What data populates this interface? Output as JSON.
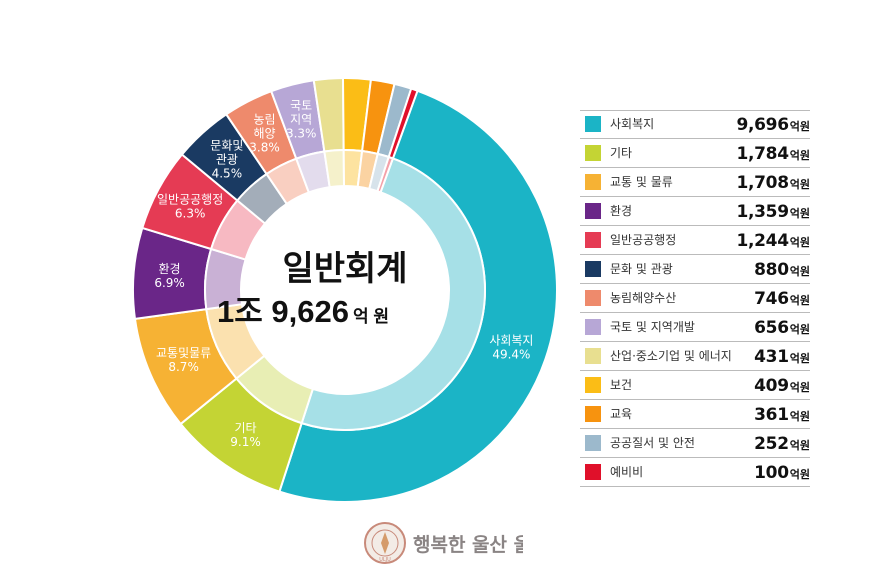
{
  "chart_data": {
    "type": "pie",
    "center_title": "일반회계",
    "center_value": "1조 9,626",
    "center_unit": "억 원",
    "slices": [
      {
        "label": "사회복지",
        "short_label": [
          "사회복지"
        ],
        "pct_label": "49.4%",
        "pct": 49.4,
        "value": "9,696",
        "color": "#1bb4c6",
        "inner_color": "#a6e0e7"
      },
      {
        "label": "기타",
        "short_label": [
          "기타"
        ],
        "pct_label": "9.1%",
        "pct": 9.1,
        "value": "1,784",
        "color": "#c4d434",
        "inner_color": "#e8eeb4"
      },
      {
        "label": "교통 및 물류",
        "short_label": [
          "교통및물류"
        ],
        "pct_label": "8.7%",
        "pct": 8.7,
        "value": "1,708",
        "color": "#f6b234",
        "inner_color": "#fbe1af"
      },
      {
        "label": "환경",
        "short_label": [
          "환경"
        ],
        "pct_label": "6.9%",
        "pct": 6.9,
        "value": "1,359",
        "color": "#6a2688",
        "inner_color": "#c9b1d5"
      },
      {
        "label": "일반공공행정",
        "short_label": [
          "일반공공행정"
        ],
        "pct_label": "6.3%",
        "pct": 6.3,
        "value": "1,244",
        "color": "#e53b54",
        "inner_color": "#f7b9c2"
      },
      {
        "label": "문화 및 관광",
        "short_label": [
          "문화및",
          "관광"
        ],
        "pct_label": "4.5%",
        "pct": 4.5,
        "value": "880",
        "color": "#1a3a62",
        "inner_color": "#a3adb9"
      },
      {
        "label": "농림해양수산",
        "short_label": [
          "농림",
          "해양"
        ],
        "pct_label": "3.8%",
        "pct": 3.8,
        "value": "746",
        "color": "#ee8a6c",
        "inner_color": "#f9cfc1"
      },
      {
        "label": "국토 및 지역개발",
        "short_label": [
          "국토",
          "지역"
        ],
        "pct_label": "3.3%",
        "pct": 3.3,
        "value": "656",
        "color": "#b7a7d6",
        "inner_color": "#e3dced"
      },
      {
        "label": "산업·중소기업 및 에너지",
        "pct": 2.2,
        "value": "431",
        "color": "#e8df90",
        "inner_color": "#f5f1cb"
      },
      {
        "label": "보건",
        "pct": 2.1,
        "value": "409",
        "color": "#fbbd16",
        "inner_color": "#fde3a0"
      },
      {
        "label": "교육",
        "pct": 1.8,
        "value": "361",
        "color": "#f7930f",
        "inner_color": "#fbd3a2"
      },
      {
        "label": "공공질서 및 안전",
        "pct": 1.3,
        "value": "252",
        "color": "#9cb9cc",
        "inner_color": "#d7e3eb"
      },
      {
        "label": "예비비",
        "pct": 0.5,
        "value": "100",
        "color": "#e0102a",
        "inner_color": "#f3a0a8"
      }
    ],
    "unit": "억원"
  },
  "logo": {
    "text": "행복한 울산 울주",
    "ring_text": "ULJU"
  }
}
